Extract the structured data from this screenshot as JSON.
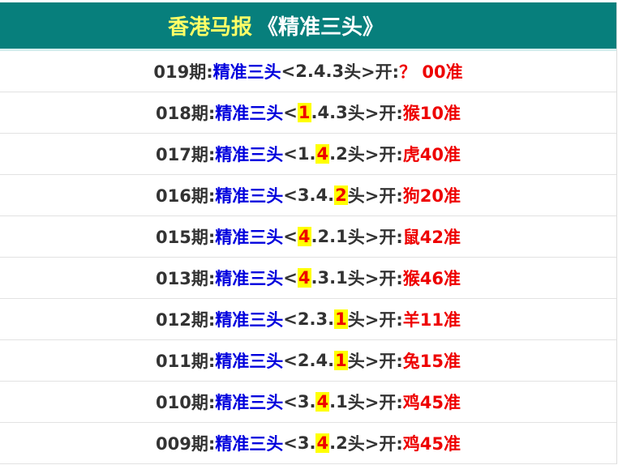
{
  "header": {
    "title_part1": "香港马报",
    "title_part2": "《精准三头》"
  },
  "label": "精准三头",
  "rows": [
    {
      "period": "019期:",
      "nums": [
        "2",
        "4",
        "3"
      ],
      "hl": -1,
      "result": "？ 00准"
    },
    {
      "period": "018期:",
      "nums": [
        "1",
        "4",
        "3"
      ],
      "hl": 0,
      "result": "猴10准"
    },
    {
      "period": "017期:",
      "nums": [
        "1",
        "4",
        "2"
      ],
      "hl": 1,
      "result": "虎40准"
    },
    {
      "period": "016期:",
      "nums": [
        "3",
        "4",
        "2"
      ],
      "hl": 2,
      "result": "狗20准"
    },
    {
      "period": "015期:",
      "nums": [
        "4",
        "2",
        "1"
      ],
      "hl": 0,
      "result": "鼠42准"
    },
    {
      "period": "013期:",
      "nums": [
        "4",
        "3",
        "1"
      ],
      "hl": 0,
      "result": "猴46准"
    },
    {
      "period": "012期:",
      "nums": [
        "2",
        "3",
        "1"
      ],
      "hl": 2,
      "result": "羊11准"
    },
    {
      "period": "011期:",
      "nums": [
        "2",
        "4",
        "1"
      ],
      "hl": 2,
      "result": "兔15准"
    },
    {
      "period": "010期:",
      "nums": [
        "3",
        "4",
        "1"
      ],
      "hl": 1,
      "result": "鸡45准"
    },
    {
      "period": "009期:",
      "nums": [
        "3",
        "4",
        "2"
      ],
      "hl": 1,
      "result": "鸡45准"
    }
  ],
  "open_prefix": "<",
  "open_suffix": "头>开:"
}
